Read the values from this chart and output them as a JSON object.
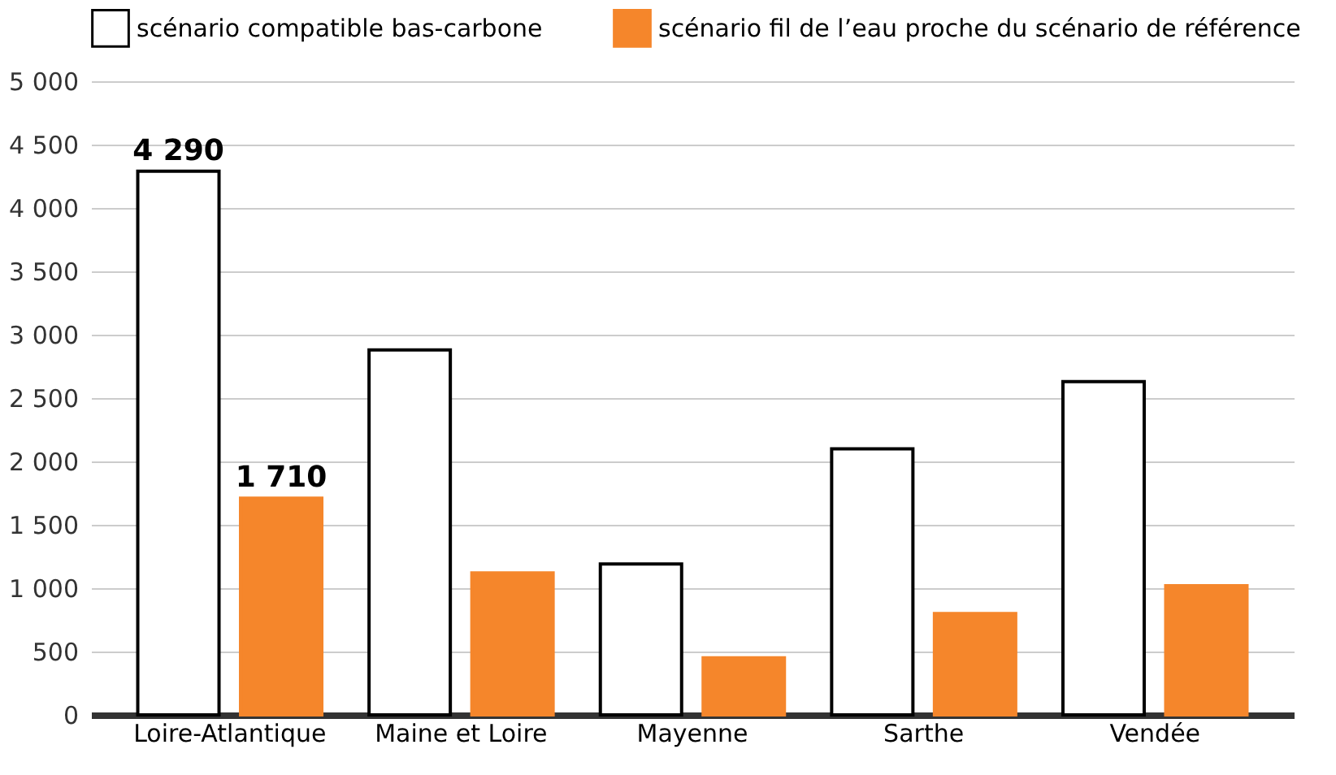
{
  "chart_data": {
    "type": "bar",
    "categories": [
      "Loire-Atlantique",
      "Maine et Loire",
      "Mayenne",
      "Sarthe",
      "Vendée"
    ],
    "series": [
      {
        "name": "scénario compatible bas-carbone",
        "color": "#ffffff",
        "values": [
          4290,
          2880,
          1190,
          2100,
          2630
        ],
        "value_labels": [
          "4 290",
          null,
          null,
          null,
          null
        ]
      },
      {
        "name": "scénario fil de l’eau proche du scénario de référence",
        "color": "#f5862b",
        "values": [
          1710,
          1120,
          450,
          800,
          1020
        ],
        "value_labels": [
          "1 710",
          null,
          null,
          null,
          null
        ]
      }
    ],
    "ylim": [
      0,
      5000
    ],
    "yticks": [
      {
        "value": 0,
        "label": "0"
      },
      {
        "value": 500,
        "label": "500"
      },
      {
        "value": 1000,
        "label": "1 000"
      },
      {
        "value": 1500,
        "label": "1 500"
      },
      {
        "value": 2000,
        "label": "2 000"
      },
      {
        "value": 2500,
        "label": "2 500"
      },
      {
        "value": 3000,
        "label": "3 000"
      },
      {
        "value": 3500,
        "label": "3 500"
      },
      {
        "value": 4000,
        "label": "4 000"
      },
      {
        "value": 4500,
        "label": "4 500"
      },
      {
        "value": 5000,
        "label": "5 000"
      }
    ],
    "grid": "y",
    "legend": "top"
  }
}
